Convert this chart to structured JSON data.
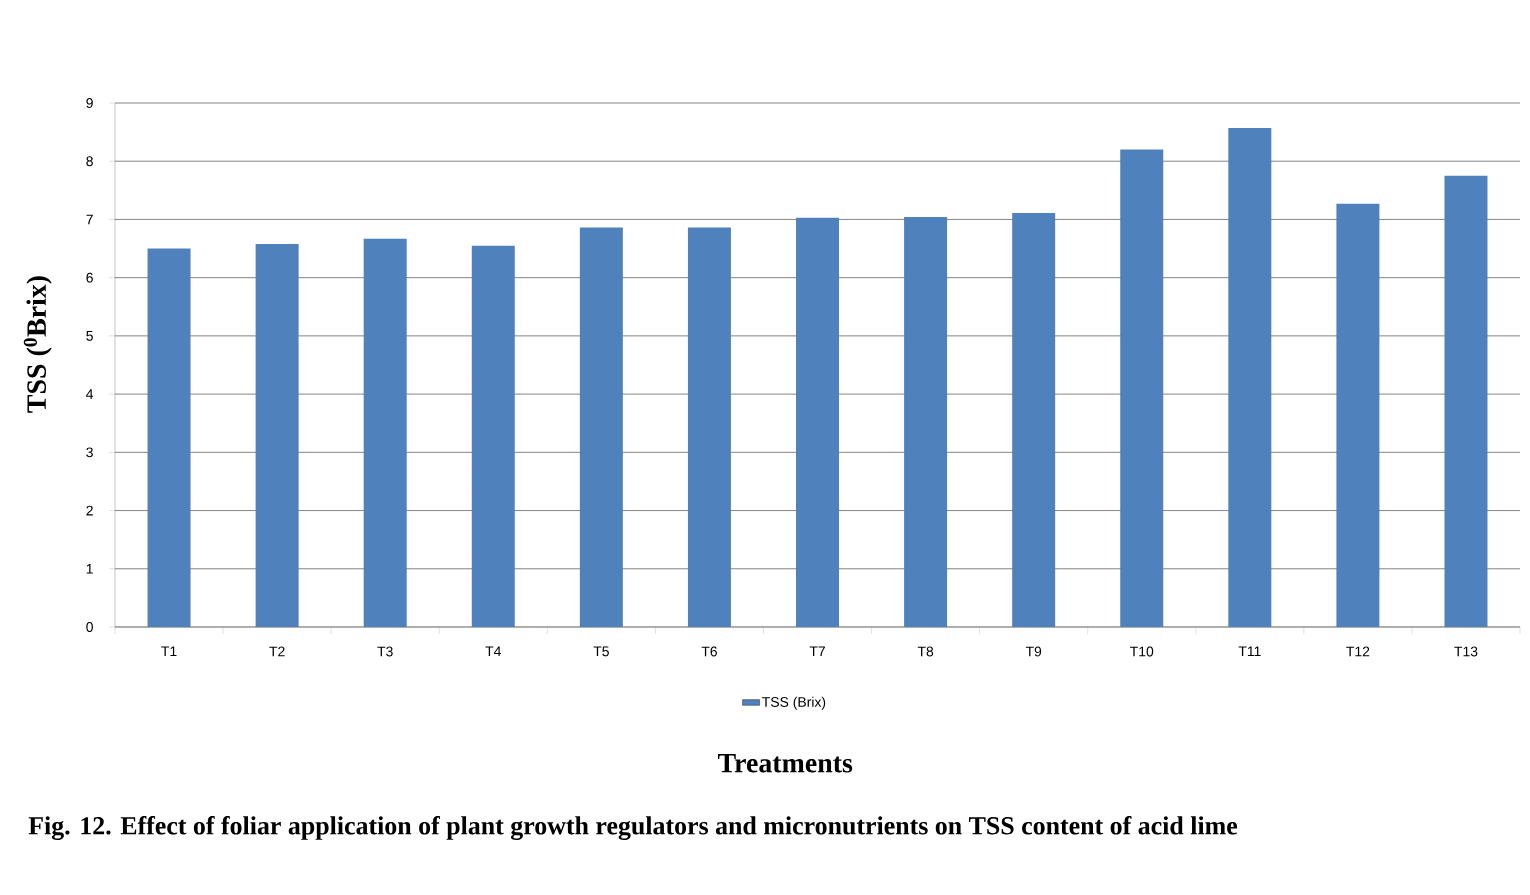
{
  "chart_data": {
    "type": "bar",
    "categories": [
      "T1",
      "T2",
      "T3",
      "T4",
      "T5",
      "T6",
      "T7",
      "T8",
      "T9",
      "T10",
      "T11",
      "T12",
      "T13"
    ],
    "series": [
      {
        "name": "TSS (Brix)",
        "color": "#4f81bd",
        "values": [
          6.5,
          6.58,
          6.67,
          6.55,
          6.86,
          6.86,
          7.03,
          7.04,
          7.11,
          8.2,
          8.57,
          7.27,
          7.75
        ]
      }
    ],
    "ylim": [
      0,
      9
    ],
    "yticks": [
      0,
      1,
      2,
      3,
      4,
      5,
      6,
      7,
      8,
      9
    ],
    "grid": "y",
    "legend": "bottom",
    "ylabel": "TSS ($^{0}$Brix)",
    "xlabel": "Treatments",
    "annotations": [
      "Fig. 12.  Effect of  foliar application of plant growth regulators and micronutrients on TSS  content of acid lime"
    ]
  }
}
